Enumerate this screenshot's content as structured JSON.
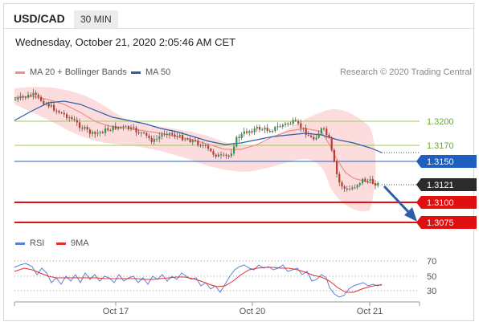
{
  "header": {
    "symbol": "USD/CAD",
    "timeframe": "30 MIN"
  },
  "timestamp": "Wednesday, October 21, 2020 2:05:46 AM CET",
  "legend": {
    "ma20": "MA 20 + Bollinger Bands",
    "ma50": "MA 50",
    "ma20_color": "#f28b8b",
    "ma50_color": "#2d5fa8"
  },
  "credit": "Research © 2020 Trading Central",
  "levels": [
    {
      "value": "1.3200",
      "kind": "resistance-green"
    },
    {
      "value": "1.3170",
      "kind": "resistance-green"
    },
    {
      "value": "1.3150",
      "kind": "pivot-blue"
    },
    {
      "value": "1.3121",
      "kind": "last-price"
    },
    {
      "value": "1.3100",
      "kind": "target-red"
    },
    {
      "value": "1.3075",
      "kind": "target-red"
    }
  ],
  "rsi_legend": {
    "rsi": "RSI",
    "ma9": "9MA",
    "rsi_color": "#5b7fd6",
    "ma9_color": "#e33030"
  },
  "rsi_levels": [
    "70",
    "50",
    "30"
  ],
  "x_labels": [
    "Oct 17",
    "Oct 20",
    "Oct 21"
  ],
  "colors": {
    "bull": "#2e9a4a",
    "bear": "#c0392b",
    "bands": "#fcd6d6",
    "green_level": "#9acd58",
    "blue_level": "#1f5fbf",
    "red_level": "#e01010",
    "arrow": "#2d5fa8"
  }
}
